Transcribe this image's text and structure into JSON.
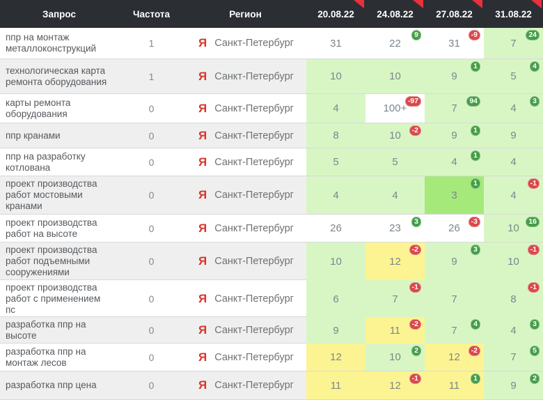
{
  "header": {
    "query": "Запрос",
    "frequency": "Частота",
    "region": "Регион",
    "dates": [
      "20.08.22",
      "24.08.22",
      "27.08.22",
      "31.08.22"
    ]
  },
  "engine_label": "Я",
  "colors": {
    "header_bg": "#2b2f33",
    "corner_red": "#e8303e",
    "yandex_red": "#d8352c",
    "row_alt_bg": "#efefef",
    "green_bg": "#d8f6c4",
    "green_strong_bg": "#a5e97b",
    "yellow_bg": "#fcf492",
    "badge_up": "#449d48",
    "badge_down": "#d9484b"
  },
  "rows": [
    {
      "query": "ппр на монтаж металлоконструкций",
      "frequency": "1",
      "region": "Санкт-Петербург",
      "positions": [
        {
          "value": "31",
          "bg": "plain"
        },
        {
          "value": "22",
          "bg": "plain",
          "delta": "9",
          "trend": "up"
        },
        {
          "value": "31",
          "bg": "plain",
          "delta": "-9",
          "trend": "down"
        },
        {
          "value": "7",
          "bg": "green",
          "delta": "24",
          "trend": "up"
        }
      ]
    },
    {
      "query": "технологическая карта ремонта оборудования",
      "frequency": "1",
      "region": "Санкт-Петербург",
      "positions": [
        {
          "value": "10",
          "bg": "green"
        },
        {
          "value": "10",
          "bg": "green"
        },
        {
          "value": "9",
          "bg": "green",
          "delta": "1",
          "trend": "up"
        },
        {
          "value": "5",
          "bg": "green",
          "delta": "4",
          "trend": "up"
        }
      ]
    },
    {
      "query": "карты ремонта оборудования",
      "frequency": "0",
      "region": "Санкт-Петербург",
      "positions": [
        {
          "value": "4",
          "bg": "green"
        },
        {
          "value": "100+",
          "bg": "plain",
          "delta": "-97",
          "trend": "down"
        },
        {
          "value": "7",
          "bg": "green",
          "delta": "94",
          "trend": "up"
        },
        {
          "value": "4",
          "bg": "green",
          "delta": "3",
          "trend": "up"
        }
      ]
    },
    {
      "query": "ппр кранами",
      "frequency": "0",
      "region": "Санкт-Петербург",
      "positions": [
        {
          "value": "8",
          "bg": "green"
        },
        {
          "value": "10",
          "bg": "green",
          "delta": "-2",
          "trend": "down"
        },
        {
          "value": "9",
          "bg": "green",
          "delta": "1",
          "trend": "up"
        },
        {
          "value": "9",
          "bg": "green"
        }
      ]
    },
    {
      "query": "ппр на разработку котлована",
      "frequency": "0",
      "region": "Санкт-Петербург",
      "positions": [
        {
          "value": "5",
          "bg": "green"
        },
        {
          "value": "5",
          "bg": "green"
        },
        {
          "value": "4",
          "bg": "green",
          "delta": "1",
          "trend": "up"
        },
        {
          "value": "4",
          "bg": "green"
        }
      ]
    },
    {
      "query": "проект производства работ мостовыми кранами",
      "frequency": "0",
      "region": "Санкт-Петербург",
      "positions": [
        {
          "value": "4",
          "bg": "green"
        },
        {
          "value": "4",
          "bg": "green"
        },
        {
          "value": "3",
          "bg": "strong",
          "delta": "1",
          "trend": "up"
        },
        {
          "value": "4",
          "bg": "green",
          "delta": "-1",
          "trend": "down"
        }
      ]
    },
    {
      "query": "проект производства работ на высоте",
      "frequency": "0",
      "region": "Санкт-Петербург",
      "positions": [
        {
          "value": "26",
          "bg": "plain"
        },
        {
          "value": "23",
          "bg": "plain",
          "delta": "3",
          "trend": "up"
        },
        {
          "value": "26",
          "bg": "plain",
          "delta": "-3",
          "trend": "down"
        },
        {
          "value": "10",
          "bg": "green",
          "delta": "16",
          "trend": "up"
        }
      ]
    },
    {
      "query": "проект производства работ подъемными сооружениями",
      "frequency": "0",
      "region": "Санкт-Петербург",
      "positions": [
        {
          "value": "10",
          "bg": "green"
        },
        {
          "value": "12",
          "bg": "yellow",
          "delta": "-2",
          "trend": "down"
        },
        {
          "value": "9",
          "bg": "green",
          "delta": "3",
          "trend": "up"
        },
        {
          "value": "10",
          "bg": "green",
          "delta": "-1",
          "trend": "down"
        }
      ]
    },
    {
      "query": "проект производства работ с применением пс",
      "frequency": "0",
      "region": "Санкт-Петербург",
      "positions": [
        {
          "value": "6",
          "bg": "green"
        },
        {
          "value": "7",
          "bg": "green",
          "delta": "-1",
          "trend": "down"
        },
        {
          "value": "7",
          "bg": "green"
        },
        {
          "value": "8",
          "bg": "green",
          "delta": "-1",
          "trend": "down"
        }
      ]
    },
    {
      "query": "разработка ппр на высоте",
      "frequency": "0",
      "region": "Санкт-Петербург",
      "positions": [
        {
          "value": "9",
          "bg": "green"
        },
        {
          "value": "11",
          "bg": "yellow",
          "delta": "-2",
          "trend": "down"
        },
        {
          "value": "7",
          "bg": "green",
          "delta": "4",
          "trend": "up"
        },
        {
          "value": "4",
          "bg": "green",
          "delta": "3",
          "trend": "up"
        }
      ]
    },
    {
      "query": "разработка ппр на монтаж лесов",
      "frequency": "0",
      "region": "Санкт-Петербург",
      "positions": [
        {
          "value": "12",
          "bg": "yellow"
        },
        {
          "value": "10",
          "bg": "green",
          "delta": "2",
          "trend": "up"
        },
        {
          "value": "12",
          "bg": "yellow",
          "delta": "-2",
          "trend": "down"
        },
        {
          "value": "7",
          "bg": "green",
          "delta": "5",
          "trend": "up"
        }
      ]
    },
    {
      "query": "разработка ппр цена",
      "frequency": "0",
      "region": "Санкт-Петербург",
      "positions": [
        {
          "value": "11",
          "bg": "yellow"
        },
        {
          "value": "12",
          "bg": "yellow",
          "delta": "-1",
          "trend": "down"
        },
        {
          "value": "11",
          "bg": "yellow",
          "delta": "1",
          "trend": "up"
        },
        {
          "value": "9",
          "bg": "green",
          "delta": "2",
          "trend": "up"
        }
      ]
    }
  ]
}
